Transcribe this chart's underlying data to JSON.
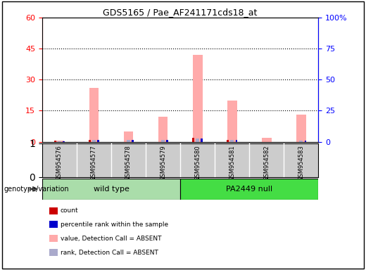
{
  "title": "GDS5165 / Pae_AF241171cds18_at",
  "samples": [
    "GSM954576",
    "GSM954577",
    "GSM954578",
    "GSM954579",
    "GSM954580",
    "GSM954581",
    "GSM954582",
    "GSM954583"
  ],
  "group_info": [
    {
      "label": "wild type",
      "start": 0,
      "end": 3,
      "color": "#aaddaa"
    },
    {
      "label": "PA2449 null",
      "start": 4,
      "end": 7,
      "color": "#44dd44"
    }
  ],
  "count_values": [
    0.5,
    1.0,
    0.0,
    0.0,
    2.0,
    1.0,
    0.0,
    0.0
  ],
  "rank_values": [
    0.3,
    1.5,
    1.2,
    1.5,
    2.5,
    1.5,
    0.0,
    1.0
  ],
  "absent_value_values": [
    0.7,
    26.0,
    5.0,
    12.0,
    42.0,
    20.0,
    2.0,
    13.0
  ],
  "absent_rank_values": [
    0.3,
    1.5,
    1.2,
    1.5,
    2.5,
    1.5,
    0.0,
    1.0
  ],
  "left_ylim": [
    0,
    60
  ],
  "right_ylim": [
    0,
    100
  ],
  "left_yticks": [
    0,
    15,
    30,
    45,
    60
  ],
  "right_yticks": [
    0,
    25,
    50,
    75,
    100
  ],
  "right_yticklabels": [
    "0",
    "25",
    "50",
    "75",
    "100%"
  ],
  "bar_colors": {
    "count": "#cc0000",
    "rank": "#0000cc",
    "absent_value": "#ffaaaa",
    "absent_rank": "#aaaacc"
  },
  "legend_items": [
    {
      "color": "#cc0000",
      "label": "count"
    },
    {
      "color": "#0000cc",
      "label": "percentile rank within the sample"
    },
    {
      "color": "#ffaaaa",
      "label": "value, Detection Call = ABSENT"
    },
    {
      "color": "#aaaacc",
      "label": "rank, Detection Call = ABSENT"
    }
  ],
  "genotype_label": "genotype/variation",
  "sample_box_color": "#cccccc",
  "background_color": "#ffffff"
}
